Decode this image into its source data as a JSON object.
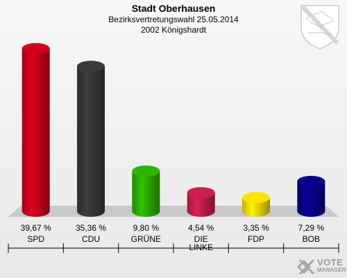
{
  "header": {
    "title": "Stadt Oberhausen",
    "subtitle": "Bezirksvertretungswahl 25.05.2014",
    "district": "2002 Königshardt"
  },
  "logo": {
    "line1": "VOTE",
    "line2": "MANAGER"
  },
  "colors": {
    "background": "#efefef",
    "floor": "#c9c9c9"
  },
  "chart_data": {
    "type": "bar",
    "title": "Stadt Oberhausen",
    "subtitle": "Bezirksvertretungswahl 25.05.2014 – 2002 Königshardt",
    "unit": "%",
    "categories": [
      "SPD",
      "CDU",
      "GRÜNE",
      "DIE LINKE",
      "FDP",
      "BOB"
    ],
    "values": [
      39.67,
      35.36,
      9.8,
      4.54,
      3.35,
      7.29
    ],
    "value_labels": [
      "39,67 %",
      "35,36 %",
      "9,80 %",
      "4,54 %",
      "3,35 %",
      "7,29 %"
    ],
    "category_labels": [
      [
        "SPD"
      ],
      [
        "CDU"
      ],
      [
        "GRÜNE"
      ],
      [
        "DIE",
        "LINKE"
      ],
      [
        "FDP"
      ],
      [
        "BOB"
      ]
    ],
    "colors": [
      "#d0021b",
      "#3a3a3a",
      "#2db400",
      "#cc1f4e",
      "#ffe400",
      "#07008c"
    ],
    "ylim": [
      0,
      40
    ],
    "grid": false,
    "legend": "none"
  }
}
